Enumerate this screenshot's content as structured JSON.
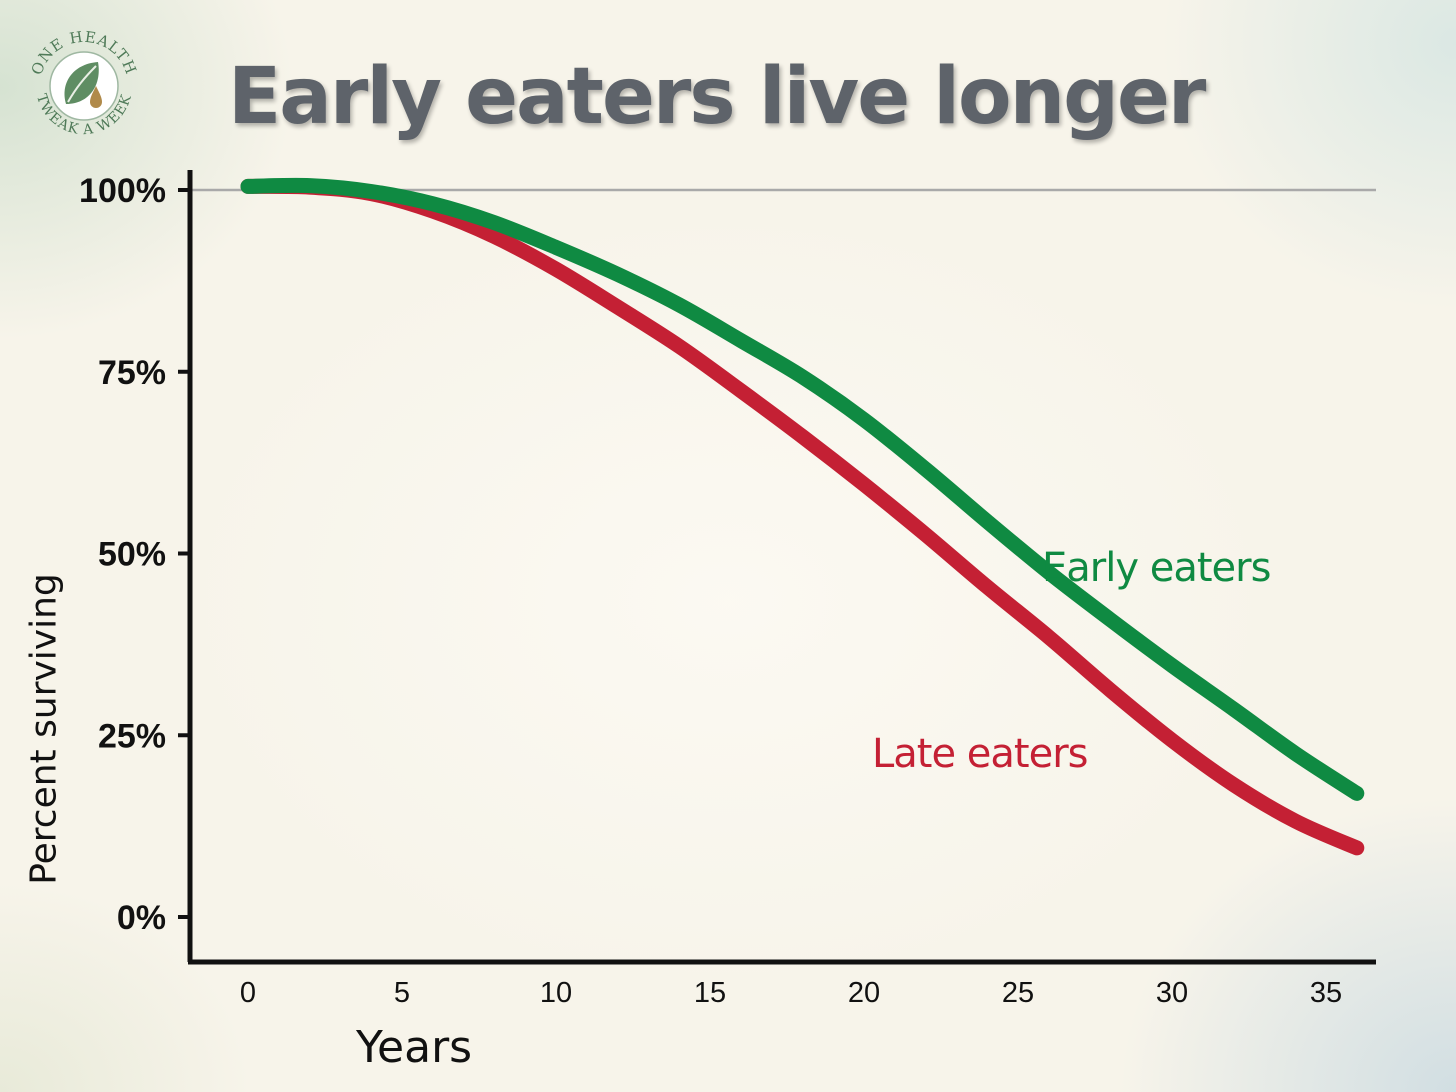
{
  "title": "Early eaters live longer",
  "logo": {
    "text_top": "ONE HEALTH",
    "text_bottom": "TWEAK A WEEK",
    "icon": "leaf-drop-icon",
    "color": "#4f7a58"
  },
  "chart_data": {
    "type": "line",
    "title": "Early eaters live longer",
    "xlabel": "Years",
    "ylabel": "Percent surviving",
    "xlim": [
      0,
      36
    ],
    "ylim": [
      0,
      100
    ],
    "xticks": [
      0,
      5,
      10,
      15,
      20,
      25,
      30,
      35
    ],
    "yticks": [
      {
        "value": 0,
        "label": "0%"
      },
      {
        "value": 25,
        "label": "25%"
      },
      {
        "value": 50,
        "label": "50%"
      },
      {
        "value": 75,
        "label": "75%"
      },
      {
        "value": 100,
        "label": "100%"
      }
    ],
    "reference_line": 100,
    "grid": false,
    "legend": "inline labels",
    "series": [
      {
        "name": "Early eaters",
        "color": "#0f8a42",
        "x": [
          0,
          2,
          4,
          6,
          8,
          10,
          12,
          14,
          16,
          18,
          20,
          22,
          24,
          26,
          28,
          30,
          32,
          34,
          36
        ],
        "y": [
          100.5,
          100.6,
          99.8,
          98.1,
          95.5,
          92.1,
          88.4,
          84.2,
          79.3,
          74.3,
          68.4,
          61.6,
          54.4,
          47.4,
          40.9,
          34.6,
          28.6,
          22.5,
          17.0
        ]
      },
      {
        "name": "Late eaters",
        "color": "#c42034",
        "x": [
          0,
          2,
          4,
          6,
          8,
          10,
          12,
          14,
          16,
          18,
          20,
          22,
          24,
          26,
          28,
          30,
          32,
          34,
          36
        ],
        "y": [
          100.5,
          100.4,
          99.5,
          97.1,
          93.6,
          89.1,
          83.9,
          78.5,
          72.4,
          66.1,
          59.5,
          52.6,
          45.4,
          38.5,
          31.2,
          24.3,
          18.2,
          13.2,
          9.5
        ]
      }
    ]
  }
}
